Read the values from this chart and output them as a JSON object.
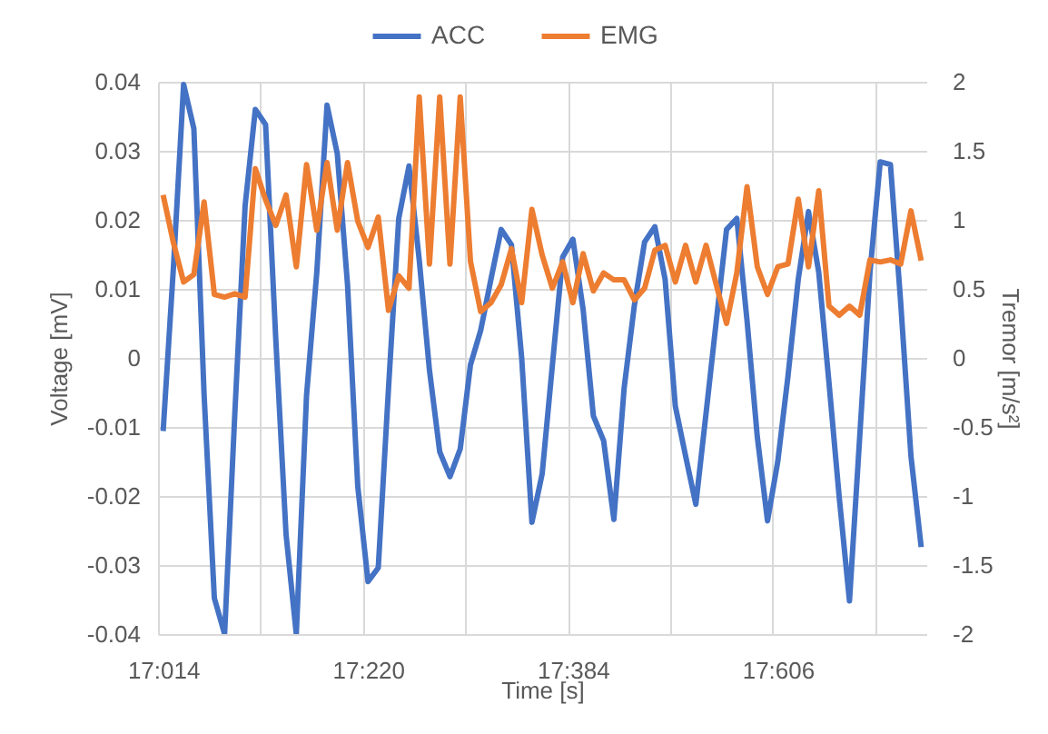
{
  "chart_data": {
    "type": "line",
    "xlabel": "Time [s]",
    "ylabel": "Voltage [mV]",
    "y2label": "Tremor [m/s²]",
    "categories": [
      "17:014",
      null,
      null,
      null,
      null,
      null,
      null,
      null,
      null,
      null,
      null,
      null,
      null,
      null,
      null,
      null,
      null,
      null,
      null,
      null,
      "17:220",
      null,
      null,
      null,
      null,
      null,
      null,
      null,
      null,
      null,
      null,
      null,
      null,
      null,
      null,
      null,
      null,
      null,
      null,
      null,
      "17:384",
      null,
      null,
      null,
      null,
      null,
      null,
      null,
      null,
      null,
      null,
      null,
      null,
      null,
      null,
      null,
      null,
      null,
      null,
      null,
      "17:606",
      null,
      null,
      null,
      null,
      null,
      null,
      null,
      null,
      null,
      null,
      null,
      null,
      null,
      null
    ],
    "series": [
      {
        "name": "ACC",
        "color": "#4472c4",
        "axis": "y2",
        "values": [
          -0.53,
          0.65,
          1.98,
          1.66,
          -0.27,
          -1.74,
          -2,
          -0.4,
          1.1,
          1.8,
          1.69,
          0.13,
          -1.28,
          -2,
          -0.27,
          0.62,
          1.83,
          1.48,
          0.53,
          -0.93,
          -1.62,
          -1.52,
          -0.22,
          1.01,
          1.39,
          0.71,
          -0.09,
          -0.68,
          -0.86,
          -0.66,
          -0.05,
          0.2,
          0.57,
          0.93,
          0.82,
          0,
          -1.19,
          -0.84,
          -0.05,
          0.73,
          0.86,
          0.35,
          -0.42,
          -0.6,
          -1.17,
          -0.22,
          0.38,
          0.84,
          0.95,
          0.57,
          -0.35,
          -0.71,
          -1.06,
          -0.4,
          0.27,
          0.93,
          1.01,
          0.27,
          -0.57,
          -1.18,
          -0.75,
          -0.13,
          0.57,
          1.06,
          0.62,
          -0.18,
          -1.01,
          -1.76,
          -0.57,
          0.62,
          1.42,
          1.4,
          0.4,
          -0.71,
          -1.37
        ]
      },
      {
        "name": "EMG",
        "color": "#ed7d31",
        "values": [
          0.0236,
          0.0167,
          0.011,
          0.0121,
          0.0226,
          0.0092,
          0.0088,
          0.0093,
          0.0088,
          0.0274,
          0.0229,
          0.0192,
          0.0236,
          0.0132,
          0.028,
          0.0185,
          0.0283,
          0.0185,
          0.0283,
          0.0198,
          0.016,
          0.0204,
          0.0069,
          0.0119,
          0.0101,
          0.0378,
          0.0136,
          0.0378,
          0.0136,
          0.0378,
          0.014,
          0.0067,
          0.008,
          0.0106,
          0.0158,
          0.008,
          0.0215,
          0.0149,
          0.0101,
          0.0139,
          0.008,
          0.0151,
          0.0097,
          0.0123,
          0.0113,
          0.0113,
          0.0084,
          0.0101,
          0.0156,
          0.0163,
          0.011,
          0.0163,
          0.011,
          0.0163,
          0.0106,
          0.005,
          0.0123,
          0.0248,
          0.0132,
          0.0092,
          0.0132,
          0.0136,
          0.023,
          0.0132,
          0.0242,
          0.0075,
          0.0062,
          0.0075,
          0.0062,
          0.0142,
          0.0139,
          0.0142,
          0.0136,
          0.0213,
          0.0141
        ]
      }
    ],
    "ylim": [
      -0.04,
      0.04
    ],
    "yticks": [
      -0.04,
      -0.03,
      -0.02,
      -0.01,
      0,
      0.01,
      0.02,
      0.03,
      0.04
    ],
    "y2lim": [
      -2,
      2
    ],
    "y2ticks": [
      -2,
      -1.5,
      -1,
      -0.5,
      0,
      0.5,
      1,
      1.5,
      2
    ],
    "grid": true,
    "legend": "top"
  }
}
